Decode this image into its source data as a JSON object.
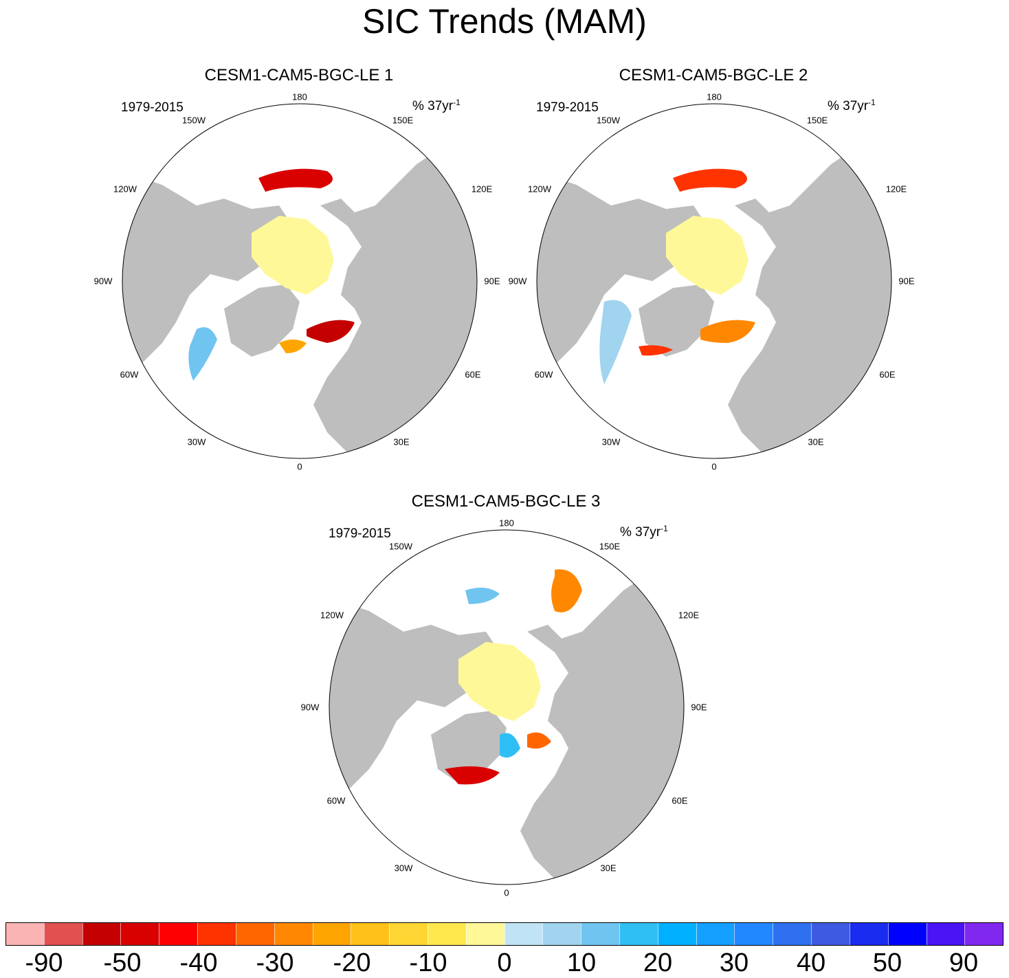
{
  "title": "SIC Trends (MAM)",
  "panels": [
    {
      "title": "CESM1-CAM5-BGC-LE 1",
      "period": "1979-2015",
      "units_base": "% 37yr",
      "units_exp": "-1"
    },
    {
      "title": "CESM1-CAM5-BGC-LE 2",
      "period": "1979-2015",
      "units_base": "% 37yr",
      "units_exp": "-1"
    },
    {
      "title": "CESM1-CAM5-BGC-LE 3",
      "period": "1979-2015",
      "units_base": "% 37yr",
      "units_exp": "-1"
    }
  ],
  "longitude_labels": [
    "180",
    "150E",
    "120E",
    "90E",
    "60E",
    "30E",
    "0",
    "30W",
    "60W",
    "90W",
    "120W",
    "150W"
  ],
  "colorbar": {
    "colors": [
      "#fbb4b4",
      "#e0514f",
      "#c40000",
      "#d90000",
      "#ff0000",
      "#ff3300",
      "#ff6600",
      "#ff8800",
      "#ffa500",
      "#ffc11a",
      "#ffd633",
      "#ffe84d",
      "#fff899",
      "#c0e4f6",
      "#a0d4ef",
      "#70c4f0",
      "#30bff5",
      "#00b0ff",
      "#14a0ff",
      "#2288ff",
      "#2f70f0",
      "#3d5ae0",
      "#1a2cf0",
      "#0000ff",
      "#4a14f5",
      "#8128f0"
    ],
    "labels": [
      "-90",
      "-50",
      "-40",
      "-30",
      "-20",
      "-10",
      "0",
      "10",
      "20",
      "30",
      "40",
      "50",
      "90"
    ]
  },
  "colors": {
    "land": "#bebebe",
    "ocean": "#ffffff",
    "ice_neutral": "#fff899"
  }
}
